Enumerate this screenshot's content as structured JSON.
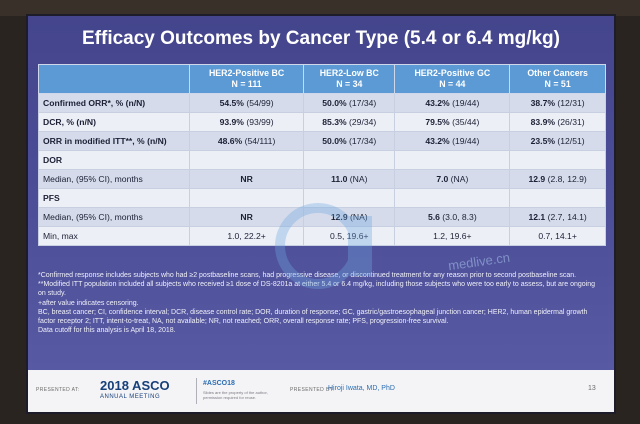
{
  "slide": {
    "title": "Efficacy Outcomes by Cancer Type (5.4 or 6.4 mg/kg)"
  },
  "table": {
    "headers": [
      "",
      "HER2-Positive BC\nN = 111",
      "HER2-Low BC\nN = 34",
      "HER2-Positive GC\nN = 44",
      "Other Cancers\nN = 51"
    ],
    "rows": [
      {
        "label": "Confirmed ORR*, % (n/N)",
        "sub": false,
        "cells": [
          [
            "54.5%",
            " (54/99)"
          ],
          [
            "50.0%",
            " (17/34)"
          ],
          [
            "43.2%",
            " (19/44)"
          ],
          [
            "38.7%",
            " (12/31)"
          ]
        ]
      },
      {
        "label": "DCR, % (n/N)",
        "sub": false,
        "cells": [
          [
            "93.9%",
            " (93/99)"
          ],
          [
            "85.3%",
            " (29/34)"
          ],
          [
            "79.5%",
            " (35/44)"
          ],
          [
            "83.9%",
            " (26/31)"
          ]
        ]
      },
      {
        "label": "ORR in modified ITT**, % (n/N)",
        "sub": false,
        "cells": [
          [
            "48.6%",
            " (54/111)"
          ],
          [
            "50.0%",
            " (17/34)"
          ],
          [
            "43.2%",
            " (19/44)"
          ],
          [
            "23.5%",
            " (12/51)"
          ]
        ]
      },
      {
        "label": "DOR",
        "sub": false,
        "cells": [
          [
            "",
            ""
          ],
          [
            "",
            ""
          ],
          [
            "",
            ""
          ],
          [
            "",
            ""
          ]
        ]
      },
      {
        "label": "Median, (95% CI), months",
        "sub": true,
        "cells": [
          [
            "NR",
            ""
          ],
          [
            "11.0",
            " (NA)"
          ],
          [
            "7.0",
            " (NA)"
          ],
          [
            "12.9",
            " (2.8, 12.9)"
          ]
        ]
      },
      {
        "label": "PFS",
        "sub": false,
        "cells": [
          [
            "",
            ""
          ],
          [
            "",
            ""
          ],
          [
            "",
            ""
          ],
          [
            "",
            ""
          ]
        ]
      },
      {
        "label": "Median, (95% CI), months",
        "sub": true,
        "cells": [
          [
            "NR",
            ""
          ],
          [
            "12.9",
            " (NA)"
          ],
          [
            "5.6",
            " (3.0, 8.3)"
          ],
          [
            "12.1",
            " (2.7, 14.1)"
          ]
        ]
      },
      {
        "label": "Min, max",
        "sub": true,
        "cells": [
          [
            "",
            "1.0, 22.2+"
          ],
          [
            "",
            "0.5, 19.6+"
          ],
          [
            "",
            "1.2, 19.6+"
          ],
          [
            "",
            "0.7, 14.1+"
          ]
        ]
      }
    ]
  },
  "footnotes": [
    "*Confirmed response includes subjects who had ≥2 postbaseline scans, had progressive disease, or discontinued treatment for any reason prior to second postbaseline scan.",
    "**Modified ITT population included all subjects who received ≥1 dose of DS-8201a at either 5.4 or 6.4 mg/kg, including those subjects who were too early to assess, but are ongoing on study.",
    "+after value indicates censoring.",
    "BC, breast cancer; CI, confidence interval; DCR, disease control rate; DOR, duration of response; GC, gastric/gastroesophageal junction cancer; HER2, human epidermal growth factor receptor 2; ITT, intent-to-treat, NA, not available; NR, not reached; ORR, overall response rate; PFS, progression-free survival.",
    "Data cutoff for this analysis is April 18, 2018."
  ],
  "footer": {
    "presented_at": "PRESENTED AT:",
    "meeting_year": "2018 ASCO",
    "meeting_name": "ANNUAL MEETING",
    "hashtag": "#ASCO18",
    "note": "Slides are the property of the author, permission required for reuse.",
    "presented_by": "PRESENTED BY:",
    "presenter": "Hiroji Iwata, MD, PhD",
    "page": "13"
  },
  "watermark": {
    "text": "medlive.cn"
  },
  "colors": {
    "slide_bg": "#4b4d97",
    "header_bg": "#5b9ad5",
    "row_odd": "#d5dbea",
    "row_even": "#eceff6",
    "asco_blue": "#173f7a"
  }
}
